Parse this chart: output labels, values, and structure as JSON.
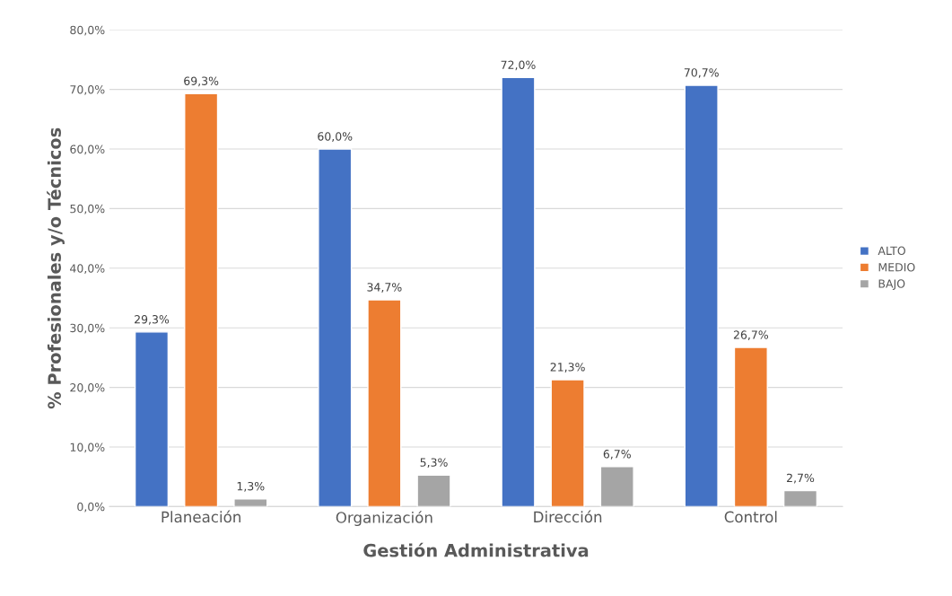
{
  "chart_data": {
    "type": "bar",
    "xlabel": "Gestión Administrativa",
    "ylabel": "% Profesionales y/o Técnicos",
    "categories": [
      "Planeación",
      "Organización",
      "Dirección",
      "Control"
    ],
    "series": [
      {
        "name": "ALTO",
        "color": "#4472c4",
        "values": [
          29.3,
          60.0,
          72.0,
          70.7
        ],
        "value_labels": [
          "29,3%",
          "60,0%",
          "72,0%",
          "70,7%"
        ]
      },
      {
        "name": "MEDIO",
        "color": "#ed7d31",
        "values": [
          69.3,
          34.7,
          21.3,
          26.7
        ],
        "value_labels": [
          "69,3%",
          "34,7%",
          "21,3%",
          "26,7%"
        ]
      },
      {
        "name": "BAJO",
        "color": "#a5a5a5",
        "values": [
          1.3,
          5.3,
          6.7,
          2.7
        ],
        "value_labels": [
          "1,3%",
          "5,3%",
          "6,7%",
          "2,7%"
        ]
      }
    ],
    "ylim": [
      0,
      80
    ],
    "yticks": [
      {
        "value": 0,
        "label": "0,0%"
      },
      {
        "value": 10,
        "label": "10,0%"
      },
      {
        "value": 20,
        "label": "20,0%"
      },
      {
        "value": 30,
        "label": "30,0%"
      },
      {
        "value": 40,
        "label": "40,0%"
      },
      {
        "value": 50,
        "label": "50,0%"
      },
      {
        "value": 60,
        "label": "60,0%"
      },
      {
        "value": 70,
        "label": "70,0%"
      },
      {
        "value": 80,
        "label": "80,0%"
      }
    ],
    "grid": "y",
    "legend": "right"
  }
}
